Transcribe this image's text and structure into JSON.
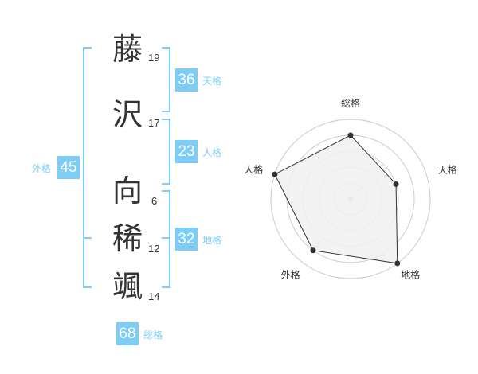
{
  "name": {
    "chars": [
      {
        "char": "藤",
        "strokes": "19"
      },
      {
        "char": "沢",
        "strokes": "17"
      },
      {
        "char": "向",
        "strokes": "6"
      },
      {
        "char": "稀",
        "strokes": "12"
      },
      {
        "char": "颯",
        "strokes": "14"
      }
    ]
  },
  "fortunes": {
    "tenkaku": {
      "label": "天格",
      "value": "36"
    },
    "jinkaku": {
      "label": "人格",
      "value": "23"
    },
    "chikaku": {
      "label": "地格",
      "value": "32"
    },
    "gaikaku": {
      "label": "外格",
      "value": "45"
    },
    "soukaku": {
      "label": "総格",
      "value": "68"
    }
  },
  "chart_data": {
    "type": "radar",
    "categories": [
      "総格",
      "天格",
      "地格",
      "外格",
      "人格"
    ],
    "values": [
      4,
      3,
      5,
      4,
      5
    ],
    "rlim": [
      0,
      5
    ],
    "grid": true,
    "colors": {
      "fill": "#f0f0f0",
      "line": "#333333",
      "grid": "#cccccc",
      "accent": "#7dcdf7"
    }
  }
}
